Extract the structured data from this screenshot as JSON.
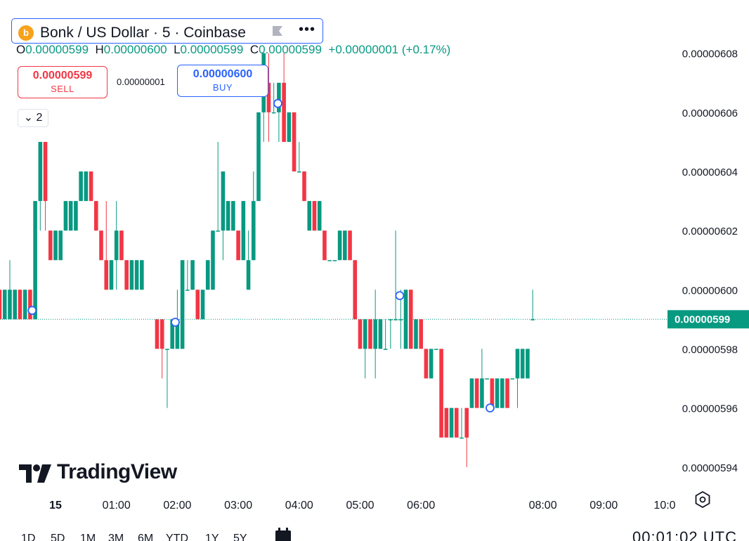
{
  "header": {
    "logo_text": "b",
    "symbol_title": "Bonk / US Dollar · 5 · Coinbase",
    "more_label": "•••",
    "ohlc": {
      "o_key": "O",
      "o_val": "0.00000599",
      "h_key": "H",
      "h_val": "0.00000600",
      "l_key": "L",
      "l_val": "0.00000599",
      "c_key": "C",
      "c_val": "0.00000599",
      "change": "+0.00000001 (+0.17%)"
    }
  },
  "trade": {
    "sell_price": "0.00000599",
    "sell_label": "SELL",
    "spread": "0.00000001",
    "buy_price": "0.00000600",
    "buy_label": "BUY"
  },
  "indicators_toggle": "⌄ 2",
  "branding": {
    "name": "TradingView"
  },
  "timeframes": [
    "1D",
    "5D",
    "1M",
    "3M",
    "6M",
    "YTD",
    "1Y",
    "5Y"
  ],
  "footer_clock": "00:01:02 UTC",
  "colors": {
    "up": "#089981",
    "down": "#f23645",
    "accent": "#2962ff",
    "last_price_bg": "#089981"
  },
  "chart_data": {
    "type": "candlestick",
    "title": "Bonk / US Dollar · 5 · Coinbase",
    "y_ticks": [
      "0.00000608",
      "0.00000606",
      "0.00000604",
      "0.00000602",
      "0.00000600",
      "0.00000598",
      "0.00000596",
      "0.00000594"
    ],
    "y_tick_values": [
      6.08,
      6.06,
      6.04,
      6.02,
      6.0,
      5.98,
      5.96,
      5.94
    ],
    "ylim": [
      5.915,
      6.098
    ],
    "x_ticks": [
      {
        "label": "15",
        "t": 0
      },
      {
        "label": "01:00",
        "t": 60
      },
      {
        "label": "02:00",
        "t": 120
      },
      {
        "label": "03:00",
        "t": 180
      },
      {
        "label": "04:00",
        "t": 240
      },
      {
        "label": "05:00",
        "t": 300
      },
      {
        "label": "06:00",
        "t": 360
      },
      {
        "label": "08:00",
        "t": 480
      },
      {
        "label": "09:00",
        "t": 540
      },
      {
        "label": "10:0",
        "t": 600
      }
    ],
    "last_price_label": "0.00000599",
    "last_price": 5.99,
    "candles": [
      [
        -60,
        5.99,
        6.0,
        5.99,
        6.0
      ],
      [
        -55,
        6.0,
        6.0,
        5.99,
        5.99
      ],
      [
        -50,
        5.99,
        6.0,
        5.99,
        6.0
      ],
      [
        -45,
        5.99,
        6.01,
        5.99,
        6.0
      ],
      [
        -40,
        5.99,
        6.0,
        5.99,
        6.0
      ],
      [
        -35,
        6.0,
        6.0,
        5.99,
        5.99
      ],
      [
        -30,
        5.99,
        6.0,
        5.99,
        6.0
      ],
      [
        -25,
        6.0,
        6.0,
        5.99,
        5.99
      ],
      [
        -20,
        5.99,
        6.03,
        5.99,
        6.03
      ],
      [
        -15,
        6.03,
        6.05,
        6.02,
        6.05
      ],
      [
        -10,
        6.05,
        6.05,
        6.02,
        6.03
      ],
      [
        -5,
        6.02,
        6.02,
        6.01,
        6.01
      ],
      [
        0,
        6.01,
        6.02,
        6.01,
        6.02
      ],
      [
        5,
        6.01,
        6.02,
        6.01,
        6.02
      ],
      [
        10,
        6.02,
        6.03,
        6.02,
        6.03
      ],
      [
        15,
        6.02,
        6.03,
        6.02,
        6.03
      ],
      [
        20,
        6.02,
        6.03,
        6.02,
        6.03
      ],
      [
        25,
        6.03,
        6.04,
        6.03,
        6.04
      ],
      [
        30,
        6.03,
        6.04,
        6.03,
        6.04
      ],
      [
        35,
        6.04,
        6.04,
        6.03,
        6.03
      ],
      [
        40,
        6.03,
        6.03,
        6.02,
        6.02
      ],
      [
        45,
        6.02,
        6.02,
        6.01,
        6.01
      ],
      [
        50,
        6.01,
        6.03,
        6.0,
        6.0
      ],
      [
        55,
        6.0,
        6.01,
        6.0,
        6.01
      ],
      [
        60,
        6.01,
        6.03,
        6.0,
        6.02
      ],
      [
        65,
        6.02,
        6.02,
        6.01,
        6.01
      ],
      [
        70,
        6.01,
        6.01,
        6.0,
        6.0
      ],
      [
        75,
        6.0,
        6.01,
        6.0,
        6.01
      ],
      [
        80,
        6.0,
        6.01,
        6.0,
        6.01
      ],
      [
        85,
        6.0,
        6.01,
        6.0,
        6.01
      ],
      [
        100,
        5.99,
        5.99,
        5.98,
        5.98
      ],
      [
        105,
        5.99,
        5.99,
        5.97,
        5.98
      ],
      [
        110,
        5.98,
        5.98,
        5.96,
        5.98
      ],
      [
        115,
        5.98,
        5.99,
        5.98,
        5.99
      ],
      [
        120,
        5.98,
        6.0,
        5.98,
        5.99
      ],
      [
        125,
        5.98,
        6.01,
        5.98,
        6.01
      ],
      [
        130,
        6.0,
        6.01,
        6.0,
        6.0
      ],
      [
        135,
        6.0,
        6.01,
        6.0,
        6.01
      ],
      [
        140,
        6.0,
        6.0,
        5.99,
        5.99
      ],
      [
        145,
        5.99,
        6.0,
        5.99,
        6.0
      ],
      [
        150,
        6.0,
        6.01,
        6.0,
        6.01
      ],
      [
        155,
        6.0,
        6.02,
        6.0,
        6.02
      ],
      [
        160,
        6.02,
        6.05,
        6.02,
        6.02
      ],
      [
        165,
        6.02,
        6.04,
        6.01,
        6.04
      ],
      [
        170,
        6.02,
        6.03,
        6.02,
        6.03
      ],
      [
        175,
        6.02,
        6.03,
        6.02,
        6.03
      ],
      [
        180,
        6.02,
        6.02,
        6.01,
        6.01
      ],
      [
        185,
        6.01,
        6.03,
        6.01,
        6.03
      ],
      [
        190,
        6.0,
        6.02,
        6.0,
        6.01
      ],
      [
        195,
        6.01,
        6.04,
        6.01,
        6.03
      ],
      [
        200,
        6.03,
        6.06,
        6.03,
        6.06
      ],
      [
        205,
        6.06,
        6.08,
        6.05,
        6.08
      ],
      [
        210,
        6.07,
        6.08,
        6.05,
        6.06
      ],
      [
        215,
        6.06,
        6.07,
        6.06,
        6.06
      ],
      [
        220,
        6.06,
        6.07,
        6.05,
        6.07
      ],
      [
        225,
        6.07,
        6.08,
        6.05,
        6.05
      ],
      [
        230,
        6.05,
        6.06,
        6.05,
        6.06
      ],
      [
        235,
        6.06,
        6.06,
        6.04,
        6.04
      ],
      [
        240,
        6.04,
        6.05,
        6.04,
        6.04
      ],
      [
        245,
        6.04,
        6.04,
        6.03,
        6.03
      ],
      [
        250,
        6.02,
        6.03,
        6.02,
        6.03
      ],
      [
        255,
        6.03,
        6.03,
        6.02,
        6.02
      ],
      [
        260,
        6.02,
        6.03,
        6.02,
        6.03
      ],
      [
        265,
        6.02,
        6.02,
        6.01,
        6.01
      ],
      [
        270,
        6.01,
        6.01,
        6.01,
        6.01
      ],
      [
        275,
        6.01,
        6.01,
        6.01,
        6.01
      ],
      [
        280,
        6.01,
        6.02,
        6.01,
        6.02
      ],
      [
        285,
        6.01,
        6.02,
        6.01,
        6.02
      ],
      [
        290,
        6.02,
        6.02,
        6.01,
        6.01
      ],
      [
        295,
        6.01,
        6.01,
        5.99,
        5.99
      ],
      [
        300,
        5.99,
        5.99,
        5.98,
        5.98
      ],
      [
        305,
        5.98,
        5.99,
        5.97,
        5.99
      ],
      [
        310,
        5.99,
        5.99,
        5.98,
        5.98
      ],
      [
        315,
        5.98,
        6.0,
        5.97,
        5.99
      ],
      [
        320,
        5.98,
        5.99,
        5.98,
        5.99
      ],
      [
        325,
        5.98,
        5.99,
        5.98,
        5.98
      ],
      [
        330,
        5.99,
        5.99,
        5.98,
        5.99
      ],
      [
        335,
        5.99,
        6.02,
        5.99,
        5.99
      ],
      [
        340,
        5.99,
        6.0,
        5.98,
        5.99
      ],
      [
        345,
        5.98,
        6.0,
        5.98,
        6.0
      ],
      [
        350,
        6.0,
        6.0,
        5.98,
        5.98
      ],
      [
        355,
        5.98,
        5.99,
        5.98,
        5.99
      ],
      [
        360,
        5.99,
        5.99,
        5.98,
        5.98
      ],
      [
        365,
        5.98,
        5.98,
        5.97,
        5.97
      ],
      [
        370,
        5.97,
        5.98,
        5.97,
        5.98
      ],
      [
        375,
        5.98,
        5.98,
        5.98,
        5.98
      ],
      [
        380,
        5.98,
        5.98,
        5.95,
        5.95
      ],
      [
        385,
        5.96,
        5.96,
        5.95,
        5.95
      ],
      [
        390,
        5.95,
        5.96,
        5.95,
        5.96
      ],
      [
        395,
        5.96,
        5.96,
        5.95,
        5.95
      ],
      [
        400,
        5.95,
        5.96,
        5.95,
        5.95
      ],
      [
        405,
        5.96,
        5.96,
        5.94,
        5.95
      ],
      [
        410,
        5.96,
        5.97,
        5.96,
        5.97
      ],
      [
        415,
        5.97,
        5.97,
        5.96,
        5.96
      ],
      [
        420,
        5.96,
        5.98,
        5.96,
        5.97
      ],
      [
        425,
        5.97,
        5.97,
        5.97,
        5.97
      ],
      [
        430,
        5.97,
        5.97,
        5.96,
        5.96
      ],
      [
        435,
        5.96,
        5.97,
        5.96,
        5.97
      ],
      [
        440,
        5.96,
        5.97,
        5.96,
        5.97
      ],
      [
        445,
        5.97,
        5.97,
        5.96,
        5.96
      ],
      [
        450,
        5.97,
        5.97,
        5.97,
        5.97
      ],
      [
        455,
        5.97,
        5.98,
        5.96,
        5.98
      ],
      [
        460,
        5.97,
        5.98,
        5.97,
        5.98
      ],
      [
        465,
        5.97,
        5.98,
        5.97,
        5.98
      ],
      [
        470,
        5.99,
        6.0,
        5.99,
        5.99
      ]
    ],
    "markers": [
      {
        "t": -23,
        "v": 5.993
      },
      {
        "t": 118,
        "v": 5.989
      },
      {
        "t": 219,
        "v": 6.063
      },
      {
        "t": 339,
        "v": 5.998
      },
      {
        "t": 428,
        "v": 5.96
      }
    ]
  }
}
